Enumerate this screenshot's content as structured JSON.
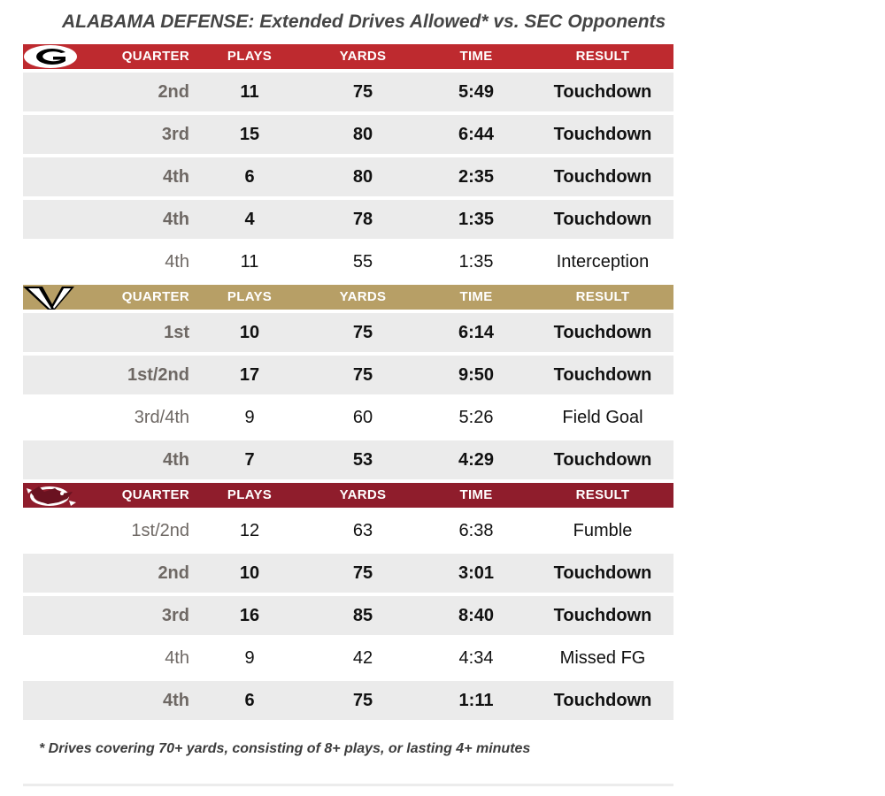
{
  "title": "ALABAMA DEFENSE: Extended Drives Allowed* vs. SEC Opponents",
  "footnote": "* Drives covering 70+ yards, consisting of 8+ plays, or lasting 4+ minutes",
  "columns": {
    "quarter": "QUARTER",
    "plays": "PLAYS",
    "yards": "YARDS",
    "time": "TIME",
    "result": "RESULT"
  },
  "sections": [
    {
      "team_icon": "georgia-g-logo",
      "header_color": "#be2a2f",
      "rows": [
        {
          "quarter": "2nd",
          "plays": "11",
          "yards": "75",
          "time": "5:49",
          "result": "Touchdown",
          "bold": true
        },
        {
          "quarter": "3rd",
          "plays": "15",
          "yards": "80",
          "time": "6:44",
          "result": "Touchdown",
          "bold": true
        },
        {
          "quarter": "4th",
          "plays": "6",
          "yards": "80",
          "time": "2:35",
          "result": "Touchdown",
          "bold": true
        },
        {
          "quarter": "4th",
          "plays": "4",
          "yards": "78",
          "time": "1:35",
          "result": "Touchdown",
          "bold": true
        },
        {
          "quarter": "4th",
          "plays": "11",
          "yards": "55",
          "time": "1:35",
          "result": "Interception",
          "bold": false
        }
      ]
    },
    {
      "team_icon": "vanderbilt-v-logo",
      "header_color": "#b79f66",
      "rows": [
        {
          "quarter": "1st",
          "plays": "10",
          "yards": "75",
          "time": "6:14",
          "result": "Touchdown",
          "bold": true
        },
        {
          "quarter": "1st/2nd",
          "plays": "17",
          "yards": "75",
          "time": "9:50",
          "result": "Touchdown",
          "bold": true
        },
        {
          "quarter": "3rd/4th",
          "plays": "9",
          "yards": "60",
          "time": "5:26",
          "result": "Field Goal",
          "bold": false
        },
        {
          "quarter": "4th",
          "plays": "7",
          "yards": "53",
          "time": "4:29",
          "result": "Touchdown",
          "bold": true
        }
      ]
    },
    {
      "team_icon": "south-carolina-gamecock-logo",
      "header_color": "#8f1d2c",
      "rows": [
        {
          "quarter": "1st/2nd",
          "plays": "12",
          "yards": "63",
          "time": "6:38",
          "result": "Fumble",
          "bold": false
        },
        {
          "quarter": "2nd",
          "plays": "10",
          "yards": "75",
          "time": "3:01",
          "result": "Touchdown",
          "bold": true
        },
        {
          "quarter": "3rd",
          "plays": "16",
          "yards": "85",
          "time": "8:40",
          "result": "Touchdown",
          "bold": true
        },
        {
          "quarter": "4th",
          "plays": "9",
          "yards": "42",
          "time": "4:34",
          "result": "Missed FG",
          "bold": false
        },
        {
          "quarter": "4th",
          "plays": "6",
          "yards": "75",
          "time": "1:11",
          "result": "Touchdown",
          "bold": true
        }
      ]
    }
  ]
}
